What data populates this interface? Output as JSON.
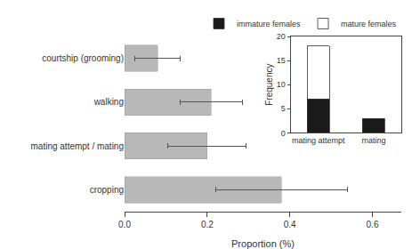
{
  "chart_data": [
    {
      "type": "bar",
      "orientation": "horizontal",
      "categories": [
        "courtship (grooming)",
        "walking",
        "mating attempt / mating",
        "cropping"
      ],
      "values": [
        0.08,
        0.21,
        0.2,
        0.38
      ],
      "errors": [
        0.055,
        0.075,
        0.095,
        0.16
      ],
      "color": "#b8b8b8",
      "xlabel": "Proportion (%)",
      "xlim": [
        0.0,
        0.67
      ],
      "xticks": [
        {
          "value": 0.0,
          "label": "0.0"
        },
        0.2,
        0.4,
        0.6
      ],
      "grid": false
    },
    {
      "type": "bar",
      "stacked": true,
      "categories": [
        "mating attempt",
        "mating"
      ],
      "series": [
        {
          "name": "immature females",
          "color": "#1a1a1a",
          "values": [
            7,
            3
          ]
        },
        {
          "name": "mature females",
          "color": "#ffffff",
          "values": [
            11,
            0
          ]
        }
      ],
      "ylabel": "Frequency",
      "ylim": [
        0,
        20
      ],
      "yticks": [
        0,
        5,
        10,
        15,
        20
      ],
      "legend": "upper right",
      "grid": false
    }
  ]
}
